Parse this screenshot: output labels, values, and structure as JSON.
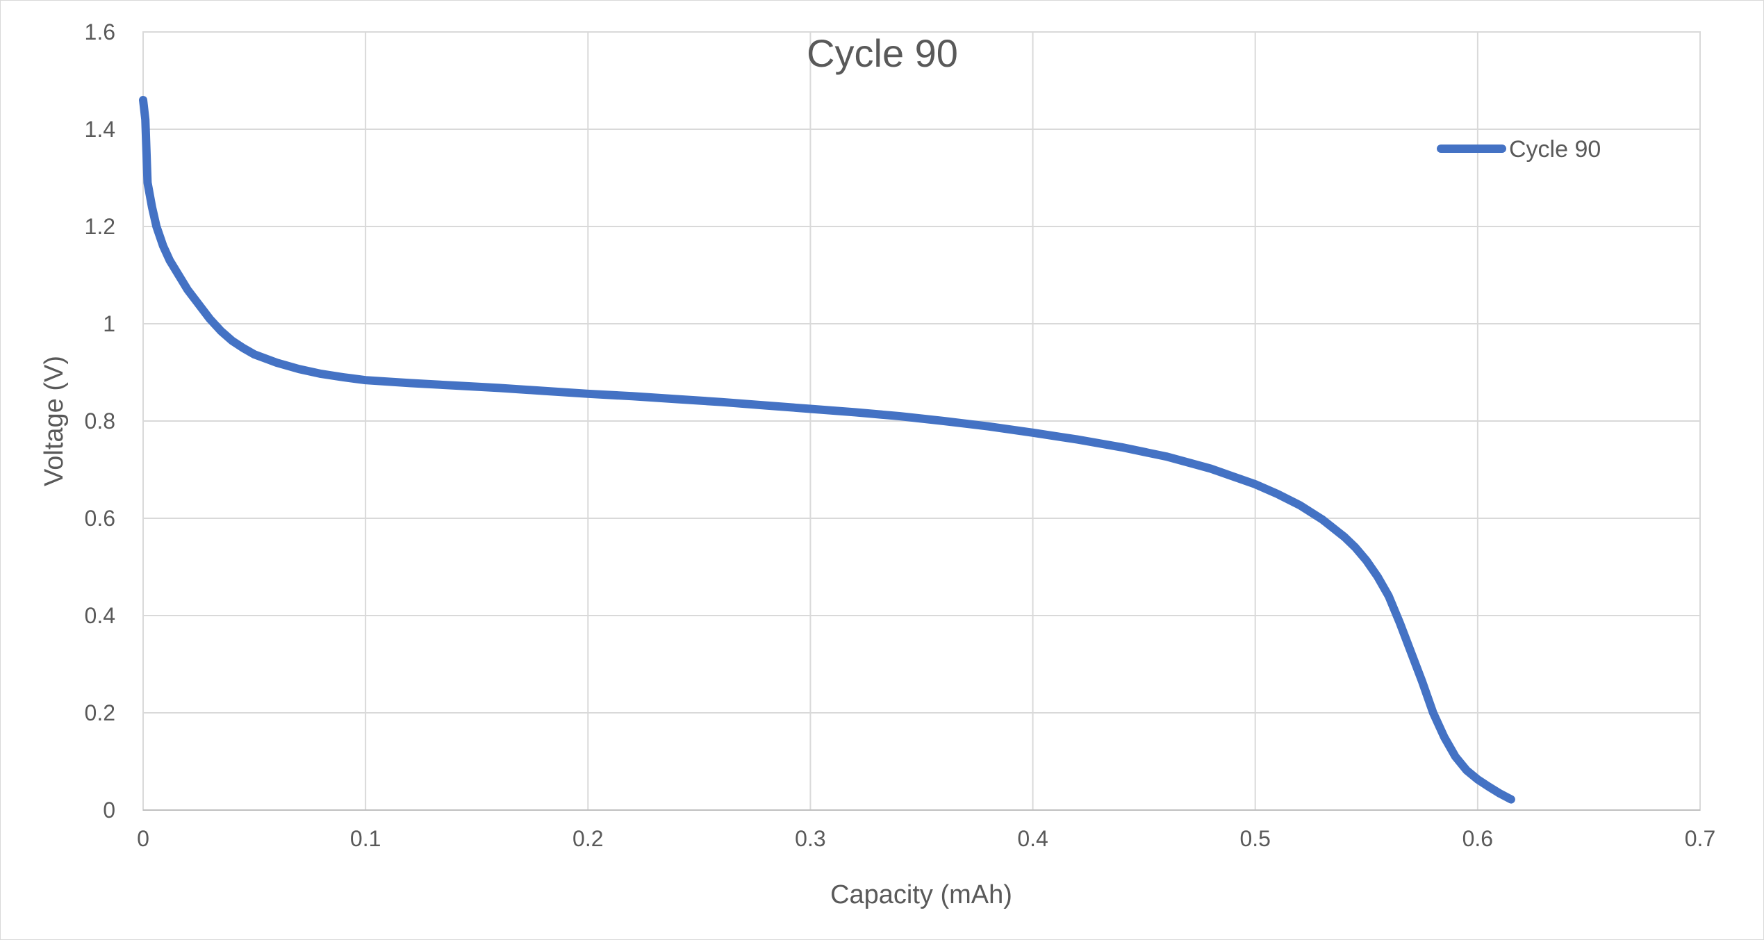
{
  "chart_data": {
    "type": "line",
    "title": "Cycle 90",
    "xlabel": "Capacity (mAh)",
    "ylabel": "Voltage (V)",
    "xlim": [
      0,
      0.7
    ],
    "ylim": [
      0,
      1.6
    ],
    "x_ticks": [
      "0",
      "0.1",
      "0.2",
      "0.3",
      "0.4",
      "0.5",
      "0.6",
      "0.7"
    ],
    "y_ticks": [
      "0",
      "0.2",
      "0.4",
      "0.6",
      "0.8",
      "1",
      "1.2",
      "1.4",
      "1.6"
    ],
    "grid": true,
    "legend_position": "top-right",
    "series": [
      {
        "name": "Cycle 90",
        "color": "#4472c4",
        "points": [
          [
            0.0,
            1.46
          ],
          [
            0.001,
            1.42
          ],
          [
            0.002,
            1.29
          ],
          [
            0.004,
            1.24
          ],
          [
            0.006,
            1.2
          ],
          [
            0.009,
            1.16
          ],
          [
            0.012,
            1.13
          ],
          [
            0.016,
            1.1
          ],
          [
            0.02,
            1.07
          ],
          [
            0.025,
            1.04
          ],
          [
            0.03,
            1.01
          ],
          [
            0.035,
            0.985
          ],
          [
            0.04,
            0.965
          ],
          [
            0.045,
            0.95
          ],
          [
            0.05,
            0.937
          ],
          [
            0.06,
            0.92
          ],
          [
            0.07,
            0.907
          ],
          [
            0.08,
            0.897
          ],
          [
            0.09,
            0.89
          ],
          [
            0.1,
            0.884
          ],
          [
            0.12,
            0.878
          ],
          [
            0.14,
            0.873
          ],
          [
            0.16,
            0.868
          ],
          [
            0.18,
            0.862
          ],
          [
            0.2,
            0.856
          ],
          [
            0.22,
            0.851
          ],
          [
            0.24,
            0.845
          ],
          [
            0.26,
            0.839
          ],
          [
            0.28,
            0.832
          ],
          [
            0.3,
            0.825
          ],
          [
            0.32,
            0.818
          ],
          [
            0.34,
            0.81
          ],
          [
            0.36,
            0.8
          ],
          [
            0.38,
            0.789
          ],
          [
            0.4,
            0.776
          ],
          [
            0.42,
            0.762
          ],
          [
            0.44,
            0.746
          ],
          [
            0.46,
            0.727
          ],
          [
            0.48,
            0.702
          ],
          [
            0.5,
            0.67
          ],
          [
            0.51,
            0.65
          ],
          [
            0.52,
            0.627
          ],
          [
            0.53,
            0.598
          ],
          [
            0.54,
            0.562
          ],
          [
            0.545,
            0.54
          ],
          [
            0.55,
            0.513
          ],
          [
            0.555,
            0.48
          ],
          [
            0.56,
            0.44
          ],
          [
            0.565,
            0.385
          ],
          [
            0.57,
            0.325
          ],
          [
            0.575,
            0.265
          ],
          [
            0.58,
            0.2
          ],
          [
            0.585,
            0.15
          ],
          [
            0.59,
            0.11
          ],
          [
            0.595,
            0.082
          ],
          [
            0.6,
            0.063
          ],
          [
            0.605,
            0.048
          ],
          [
            0.61,
            0.034
          ],
          [
            0.615,
            0.022
          ]
        ]
      }
    ]
  }
}
